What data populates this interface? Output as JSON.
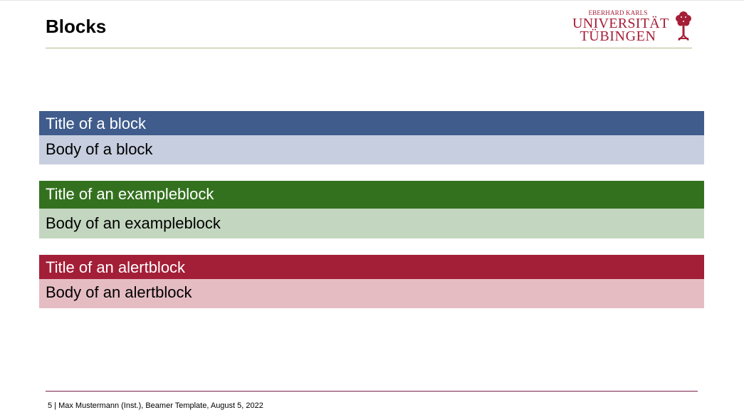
{
  "slide": {
    "title": "Blocks"
  },
  "logo": {
    "line1": "EBERHARD KARLS",
    "line2": "UNIVERSITÄT",
    "line3": "TÜBINGEN",
    "color": "#a51e37"
  },
  "blocks": [
    {
      "kind": "block",
      "title": "Title of a block",
      "body": "Body of a block",
      "title_color": "#3f5c8c",
      "body_color": "#c6cedf"
    },
    {
      "kind": "exampleblock",
      "title": "Title of an exampleblock",
      "body": "Body of an exampleblock",
      "title_color": "#34711f",
      "body_color": "#c3d6bf"
    },
    {
      "kind": "alertblock",
      "title": "Title of an alertblock",
      "body": "Body of an alertblock",
      "title_color": "#a31e37",
      "body_color": "#e6bcc3"
    }
  ],
  "footer": {
    "text": "5 | Max Mustermann (Inst.), Beamer Template, August 5, 2022"
  }
}
